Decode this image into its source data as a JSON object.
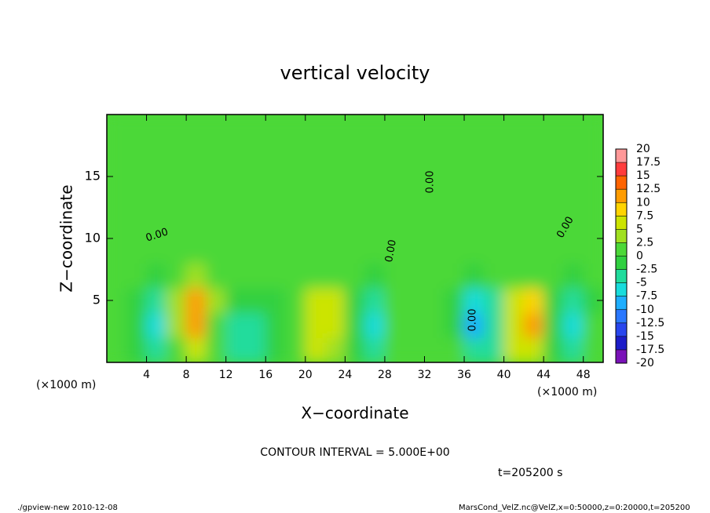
{
  "chart_data": {
    "type": "heatmap",
    "title": "vertical velocity",
    "x_label": "X−coordinate",
    "y_label": "Z−coordinate",
    "x_unit": "(×1000 m)",
    "y_unit": "(×1000 m)",
    "contour_note": "CONTOUR INTERVAL = 5.000E+00",
    "time_note": "t=205200 s",
    "footer_left": "./gpview-new  2010-12-08",
    "footer_right": "MarsCond_VelZ.nc@VelZ,x=0:50000,z=0:20000,t=205200",
    "contour_label": "0.00",
    "xlim": [
      0,
      50
    ],
    "ylim": [
      0,
      20
    ],
    "xticks": [
      4,
      8,
      12,
      16,
      20,
      24,
      28,
      32,
      36,
      40,
      44,
      48
    ],
    "yticks": [
      5,
      10,
      15
    ],
    "x": [
      1,
      3,
      5,
      7,
      9,
      11,
      13,
      15,
      17,
      19,
      21,
      23,
      25,
      27,
      29,
      31,
      33,
      35,
      37,
      39,
      41,
      43,
      45,
      47,
      49
    ],
    "z": [
      1,
      3,
      5,
      7,
      9,
      11,
      13,
      15,
      17,
      19
    ],
    "values": [
      [
        1,
        -1,
        -4,
        2,
        6,
        1,
        -4,
        -3,
        -1,
        1,
        5,
        3,
        -1,
        -3,
        1,
        1,
        0,
        0,
        -4,
        -3,
        5,
        6,
        -1,
        -3,
        0
      ],
      [
        1,
        -2,
        -6,
        4,
        11,
        2,
        -5,
        -4,
        -2,
        1,
        7,
        6,
        -1,
        -6,
        1,
        2,
        0,
        -1,
        -8,
        -5,
        7,
        10,
        -2,
        -7,
        0
      ],
      [
        0,
        -1,
        -5,
        4,
        12,
        3,
        -2,
        -1,
        -2,
        1,
        6,
        6,
        -1,
        -4,
        1,
        1,
        0,
        -1,
        -6,
        -3,
        5,
        8,
        -1,
        -5,
        -1
      ],
      [
        0,
        0,
        -1,
        1,
        4,
        1,
        0,
        0,
        0,
        0,
        2,
        2,
        0,
        -1,
        0,
        0,
        0,
        0,
        -2,
        0,
        2,
        2,
        0,
        -2,
        0
      ],
      [
        0,
        0,
        0,
        0,
        1,
        0,
        0,
        0,
        0,
        0,
        0,
        0,
        0,
        0,
        0,
        0,
        0,
        0,
        0,
        0,
        0,
        0,
        0,
        0,
        0
      ],
      [
        0,
        0,
        0,
        0,
        0,
        0,
        0,
        0,
        0,
        0,
        0,
        0,
        0,
        0,
        0,
        0,
        0,
        0,
        0,
        0,
        0,
        0,
        0,
        0,
        0
      ],
      [
        0,
        0,
        0,
        0,
        0,
        0,
        0,
        0,
        0,
        0,
        0,
        0,
        0,
        0,
        0,
        0,
        0,
        0,
        0,
        0,
        0,
        0,
        0,
        0,
        0
      ],
      [
        0,
        0,
        0,
        0,
        0,
        0,
        0,
        0,
        0,
        0,
        0,
        0,
        0,
        0,
        0,
        0,
        0,
        0,
        0,
        0,
        0,
        0,
        0,
        0,
        0
      ],
      [
        0,
        0,
        0,
        0,
        0,
        0,
        0,
        0,
        0,
        0,
        0,
        0,
        0,
        0,
        0,
        0,
        0,
        0,
        0,
        0,
        0,
        0,
        0,
        0,
        0
      ],
      [
        0,
        0,
        0,
        0,
        0,
        0,
        0,
        0,
        0,
        0,
        0,
        0,
        0,
        0,
        0,
        0,
        0,
        0,
        0,
        0,
        0,
        0,
        0,
        0,
        0
      ]
    ],
    "levels": [
      -20,
      -17.5,
      -15,
      -12.5,
      -10,
      -7.5,
      -5,
      -2.5,
      0,
      2.5,
      5,
      7.5,
      10,
      12.5,
      15,
      17.5,
      20
    ],
    "colors": [
      "#7a12b8",
      "#1c1cc8",
      "#2846ee",
      "#2a78ff",
      "#1eaeff",
      "#18dcdc",
      "#20dc9c",
      "#30d040",
      "#4cd838",
      "#a0e020",
      "#cce400",
      "#ffd400",
      "#ff9c00",
      "#ff6400",
      "#ff3c3c",
      "#ff9898"
    ]
  }
}
